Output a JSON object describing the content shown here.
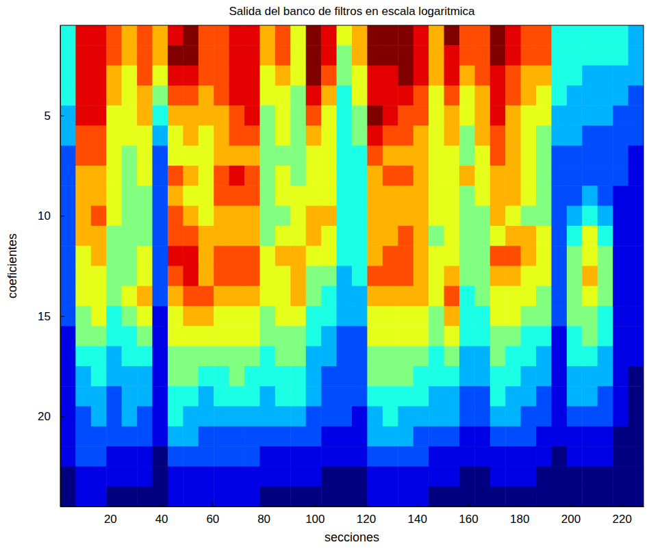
{
  "chart_data": {
    "type": "heatmap",
    "title": "Salida del banco de filtros en escala logaritmica",
    "x_label": "secciones",
    "y_label": "coeficientes",
    "xlim": [
      0.5,
      228.5
    ],
    "xticks": [
      20,
      40,
      60,
      80,
      100,
      120,
      140,
      160,
      180,
      200,
      220
    ],
    "ylim": [
      0.5,
      24.5
    ],
    "yticks": [
      5,
      10,
      15,
      20
    ],
    "x_edges": [
      0.5,
      6.5,
      12.5,
      18.5,
      24.5,
      30.5,
      36.5,
      42.5,
      48.5,
      54.5,
      60.5,
      66.5,
      72.5,
      78.5,
      84.5,
      90.5,
      96.5,
      102.5,
      108.5,
      114.5,
      120.5,
      126.5,
      132.5,
      138.5,
      144.5,
      150.5,
      156.5,
      162.5,
      168.5,
      174.5,
      180.5,
      186.5,
      192.5,
      198.5,
      204.5,
      210.5,
      216.5,
      222.5,
      228.5
    ],
    "y_edges": [
      0.5,
      1.5,
      2.5,
      3.5,
      4.5,
      5.5,
      6.5,
      7.5,
      8.5,
      9.5,
      10.5,
      11.5,
      12.5,
      13.5,
      14.5,
      15.5,
      16.5,
      17.5,
      18.5,
      19.5,
      20.5,
      21.5,
      22.5,
      23.5,
      24.5
    ],
    "clim": [
      0,
      10
    ],
    "columns": [
      [
        4,
        4,
        4,
        4,
        3,
        3,
        2,
        2,
        2,
        2,
        2,
        2,
        2,
        2,
        2,
        1,
        1,
        1,
        1,
        1,
        1,
        1,
        0,
        0
      ],
      [
        9,
        9,
        9,
        9,
        9,
        8,
        8,
        7,
        7,
        7,
        7,
        6,
        6,
        6,
        5,
        5,
        4,
        3,
        3,
        2,
        2,
        2,
        1,
        1
      ],
      [
        9,
        9,
        9,
        9,
        9,
        8,
        8,
        7,
        7,
        8,
        7,
        7,
        6,
        6,
        6,
        5,
        4,
        4,
        3,
        3,
        2,
        2,
        1,
        1
      ],
      [
        8,
        8,
        7,
        7,
        6,
        6,
        6,
        6,
        6,
        6,
        5,
        5,
        5,
        5,
        4,
        4,
        3,
        3,
        2,
        2,
        2,
        1,
        1,
        0
      ],
      [
        7,
        7,
        6,
        6,
        6,
        6,
        5,
        5,
        5,
        5,
        5,
        5,
        5,
        6,
        5,
        4,
        4,
        3,
        3,
        3,
        2,
        1,
        1,
        0
      ],
      [
        8,
        8,
        8,
        7,
        7,
        6,
        6,
        6,
        5,
        5,
        5,
        6,
        6,
        7,
        6,
        5,
        4,
        3,
        3,
        2,
        2,
        1,
        1,
        0
      ],
      [
        7,
        7,
        6,
        5,
        4,
        3,
        2,
        2,
        2,
        2,
        2,
        2,
        2,
        2,
        1,
        1,
        1,
        1,
        1,
        1,
        1,
        0,
        0,
        0
      ],
      [
        9,
        10,
        9,
        8,
        7,
        6,
        6,
        8,
        7,
        8,
        8,
        9,
        8,
        7,
        6,
        6,
        5,
        5,
        4,
        4,
        3,
        2,
        1,
        1
      ],
      [
        10,
        10,
        9,
        8,
        7,
        7,
        6,
        7,
        6,
        7,
        8,
        9,
        9,
        8,
        7,
        6,
        5,
        5,
        4,
        3,
        3,
        2,
        1,
        1
      ],
      [
        8,
        8,
        8,
        7,
        7,
        6,
        6,
        6,
        6,
        6,
        7,
        7,
        7,
        8,
        7,
        6,
        5,
        4,
        3,
        3,
        2,
        2,
        1,
        1
      ],
      [
        8,
        8,
        8,
        8,
        7,
        7,
        7,
        8,
        8,
        7,
        7,
        8,
        8,
        7,
        6,
        6,
        5,
        4,
        4,
        3,
        2,
        2,
        1,
        1
      ],
      [
        9,
        9,
        9,
        9,
        8,
        8,
        7,
        9,
        8,
        7,
        7,
        8,
        8,
        7,
        6,
        6,
        5,
        5,
        4,
        3,
        2,
        2,
        1,
        1
      ],
      [
        9,
        9,
        9,
        9,
        9,
        8,
        7,
        8,
        8,
        7,
        7,
        8,
        8,
        7,
        6,
        6,
        5,
        4,
        4,
        3,
        2,
        2,
        1,
        1
      ],
      [
        7,
        7,
        6,
        6,
        5,
        5,
        5,
        5,
        5,
        5,
        5,
        6,
        6,
        6,
        5,
        5,
        4,
        4,
        3,
        3,
        2,
        1,
        1,
        0
      ],
      [
        8,
        8,
        7,
        6,
        6,
        6,
        5,
        6,
        6,
        5,
        6,
        7,
        6,
        6,
        6,
        5,
        5,
        4,
        4,
        3,
        2,
        1,
        1,
        0
      ],
      [
        6,
        6,
        6,
        5,
        5,
        5,
        5,
        5,
        6,
        6,
        6,
        7,
        7,
        7,
        6,
        5,
        5,
        4,
        4,
        3,
        2,
        1,
        1,
        0
      ],
      [
        10,
        10,
        10,
        9,
        8,
        7,
        6,
        6,
        6,
        7,
        7,
        6,
        5,
        5,
        4,
        4,
        3,
        3,
        3,
        2,
        2,
        1,
        1,
        0
      ],
      [
        9,
        9,
        8,
        7,
        6,
        6,
        6,
        6,
        6,
        7,
        6,
        6,
        5,
        4,
        4,
        3,
        3,
        2,
        2,
        2,
        1,
        1,
        0,
        0
      ],
      [
        6,
        5,
        5,
        4,
        4,
        4,
        4,
        4,
        4,
        4,
        4,
        4,
        3,
        3,
        3,
        2,
        2,
        2,
        2,
        2,
        1,
        1,
        0,
        0
      ],
      [
        7,
        7,
        6,
        6,
        5,
        5,
        4,
        4,
        4,
        4,
        4,
        4,
        4,
        3,
        3,
        2,
        2,
        2,
        2,
        1,
        1,
        1,
        0,
        0
      ],
      [
        10,
        10,
        9,
        9,
        10,
        9,
        8,
        7,
        7,
        7,
        7,
        7,
        8,
        7,
        6,
        6,
        5,
        5,
        4,
        3,
        3,
        2,
        1,
        1
      ],
      [
        10,
        10,
        9,
        9,
        9,
        8,
        7,
        8,
        7,
        7,
        7,
        8,
        8,
        7,
        6,
        6,
        5,
        5,
        4,
        4,
        3,
        2,
        1,
        1
      ],
      [
        10,
        10,
        10,
        9,
        8,
        8,
        7,
        8,
        7,
        7,
        8,
        8,
        8,
        7,
        6,
        6,
        5,
        5,
        4,
        3,
        3,
        2,
        1,
        1
      ],
      [
        9,
        9,
        9,
        8,
        8,
        7,
        7,
        7,
        7,
        7,
        7,
        7,
        7,
        7,
        6,
        6,
        5,
        4,
        4,
        3,
        2,
        2,
        1,
        1
      ],
      [
        7,
        7,
        7,
        6,
        6,
        6,
        6,
        6,
        6,
        6,
        5,
        6,
        6,
        6,
        5,
        5,
        4,
        4,
        3,
        3,
        2,
        1,
        1,
        0
      ],
      [
        10,
        9,
        9,
        8,
        7,
        7,
        6,
        6,
        6,
        6,
        6,
        6,
        7,
        8,
        7,
        6,
        5,
        4,
        3,
        3,
        2,
        1,
        1,
        0
      ],
      [
        8,
        8,
        7,
        6,
        6,
        5,
        5,
        7,
        5,
        5,
        5,
        5,
        5,
        4,
        4,
        4,
        3,
        3,
        2,
        2,
        1,
        1,
        0,
        0
      ],
      [
        8,
        8,
        8,
        7,
        7,
        7,
        6,
        6,
        6,
        5,
        5,
        5,
        5,
        5,
        4,
        4,
        3,
        3,
        2,
        2,
        1,
        1,
        0,
        0
      ],
      [
        10,
        10,
        9,
        9,
        9,
        8,
        8,
        7,
        7,
        7,
        6,
        8,
        7,
        6,
        6,
        5,
        5,
        4,
        4,
        3,
        2,
        1,
        1,
        0
      ],
      [
        9,
        9,
        8,
        8,
        7,
        7,
        7,
        7,
        7,
        6,
        7,
        8,
        7,
        6,
        6,
        5,
        4,
        4,
        3,
        3,
        2,
        1,
        1,
        0
      ],
      [
        8,
        8,
        7,
        7,
        6,
        6,
        6,
        6,
        6,
        5,
        7,
        7,
        6,
        6,
        5,
        4,
        4,
        3,
        3,
        2,
        2,
        1,
        1,
        0
      ],
      [
        8,
        8,
        7,
        6,
        6,
        5,
        5,
        5,
        5,
        5,
        6,
        6,
        6,
        5,
        5,
        4,
        3,
        3,
        2,
        2,
        1,
        1,
        0,
        0
      ],
      [
        4,
        4,
        4,
        4,
        3,
        3,
        2,
        2,
        2,
        2,
        2,
        2,
        2,
        2,
        2,
        1,
        1,
        1,
        1,
        1,
        1,
        0,
        0,
        0
      ],
      [
        4,
        4,
        4,
        3,
        3,
        3,
        2,
        2,
        2,
        3,
        4,
        5,
        5,
        5,
        5,
        4,
        4,
        3,
        3,
        2,
        1,
        1,
        0,
        0
      ],
      [
        4,
        4,
        3,
        3,
        3,
        2,
        2,
        2,
        3,
        4,
        6,
        6,
        7,
        6,
        5,
        5,
        4,
        3,
        3,
        2,
        1,
        1,
        0,
        0
      ],
      [
        4,
        4,
        3,
        3,
        3,
        2,
        2,
        2,
        2,
        3,
        4,
        5,
        5,
        5,
        4,
        4,
        3,
        3,
        2,
        2,
        1,
        1,
        0,
        0
      ],
      [
        4,
        4,
        3,
        3,
        2,
        2,
        2,
        2,
        1,
        1,
        1,
        1,
        1,
        1,
        1,
        1,
        1,
        1,
        1,
        1,
        0,
        0,
        0,
        0
      ],
      [
        3,
        3,
        3,
        2,
        2,
        2,
        1,
        1,
        1,
        1,
        1,
        1,
        1,
        1,
        1,
        1,
        1,
        0,
        0,
        0,
        0,
        0,
        0,
        0
      ]
    ]
  }
}
